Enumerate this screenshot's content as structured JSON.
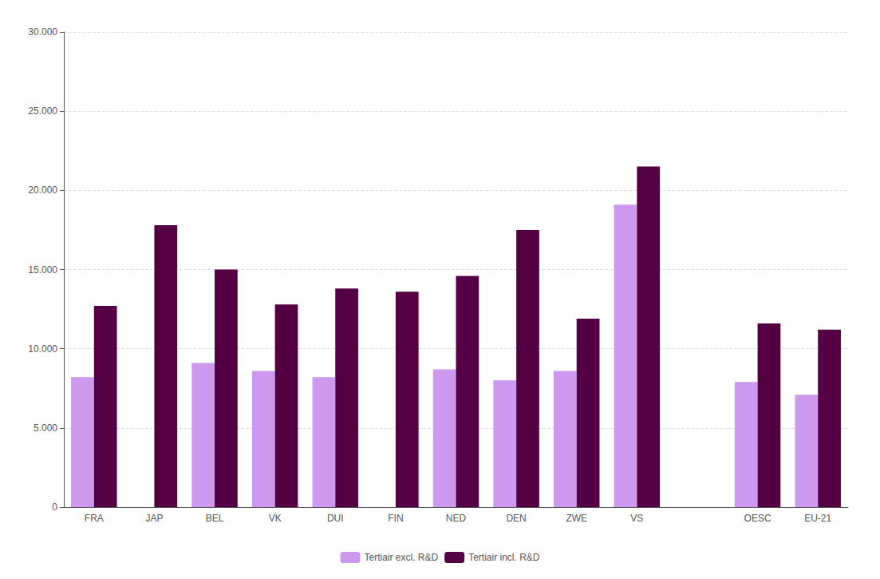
{
  "chart_data": {
    "type": "bar",
    "categories": [
      "FRA",
      "JAP",
      "BEL",
      "VK",
      "DUI",
      "FIN",
      "NED",
      "DEN",
      "ZWE",
      "VS",
      null,
      "OESC",
      "EU-21"
    ],
    "series": [
      {
        "name": "Tertiair excl. R&D",
        "color": "#cc99ee",
        "values": [
          8200,
          0,
          9100,
          8600,
          8200,
          0,
          8700,
          8000,
          8600,
          19100,
          0,
          7900,
          7100
        ]
      },
      {
        "name": "Tertiair incl. R&D",
        "color": "#550044",
        "values": [
          12700,
          17800,
          15000,
          12800,
          13800,
          13600,
          14600,
          17500,
          11900,
          21500,
          0,
          11600,
          11200
        ]
      }
    ],
    "ylim": [
      0,
      30000
    ],
    "yticks": [
      0,
      {
        "value": 5000,
        "label": "5.000"
      },
      {
        "value": 10000,
        "label": "10.000"
      },
      {
        "value": 15000,
        "label": "15.000"
      },
      {
        "value": 20000,
        "label": "20.000"
      },
      {
        "value": 25000,
        "label": "25.000"
      },
      {
        "value": 30000,
        "label": "30.000"
      }
    ],
    "grid": true,
    "legend": "bottom"
  }
}
